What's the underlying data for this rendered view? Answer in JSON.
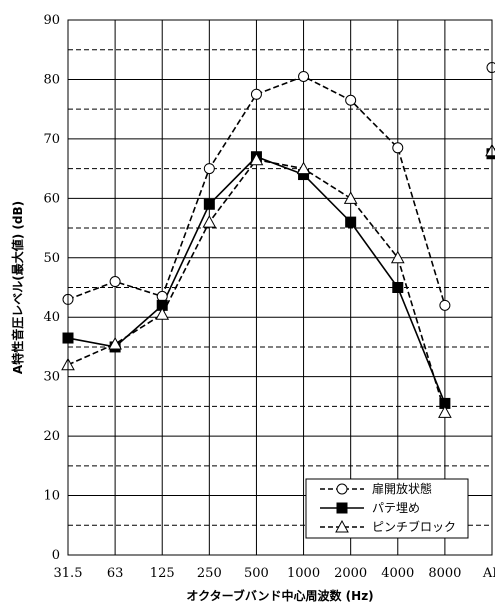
{
  "chart_data": {
    "type": "line",
    "categories": [
      "31.5",
      "63",
      "125",
      "250",
      "500",
      "1000",
      "2000",
      "4000",
      "8000",
      "AP"
    ],
    "xlabel": "オクターブバンド中心周波数 (Hz)",
    "ylabel": "A特性音圧レベル(最大値) (dB)",
    "ylim": [
      0,
      90
    ],
    "y_major_ticks": [
      0,
      10,
      20,
      30,
      40,
      50,
      60,
      70,
      80,
      90
    ],
    "grid": true,
    "legend_position": "bottom-right",
    "series": [
      {
        "name": "扉開放状態",
        "marker": "circle-open",
        "line": "dashed",
        "values": [
          43,
          46,
          43.5,
          65,
          77.5,
          80.5,
          76.5,
          68.5,
          42,
          82
        ]
      },
      {
        "name": "パテ埋め",
        "marker": "square-filled",
        "line": "solid",
        "values": [
          36.5,
          35,
          42,
          59,
          67,
          64,
          56,
          45,
          25.5,
          67.5
        ]
      },
      {
        "name": "ピンチブロック",
        "marker": "triangle-open",
        "line": "dashed",
        "values": [
          32,
          35.5,
          40.5,
          56,
          66.5,
          65,
          60,
          50,
          24,
          68
        ]
      }
    ]
  }
}
